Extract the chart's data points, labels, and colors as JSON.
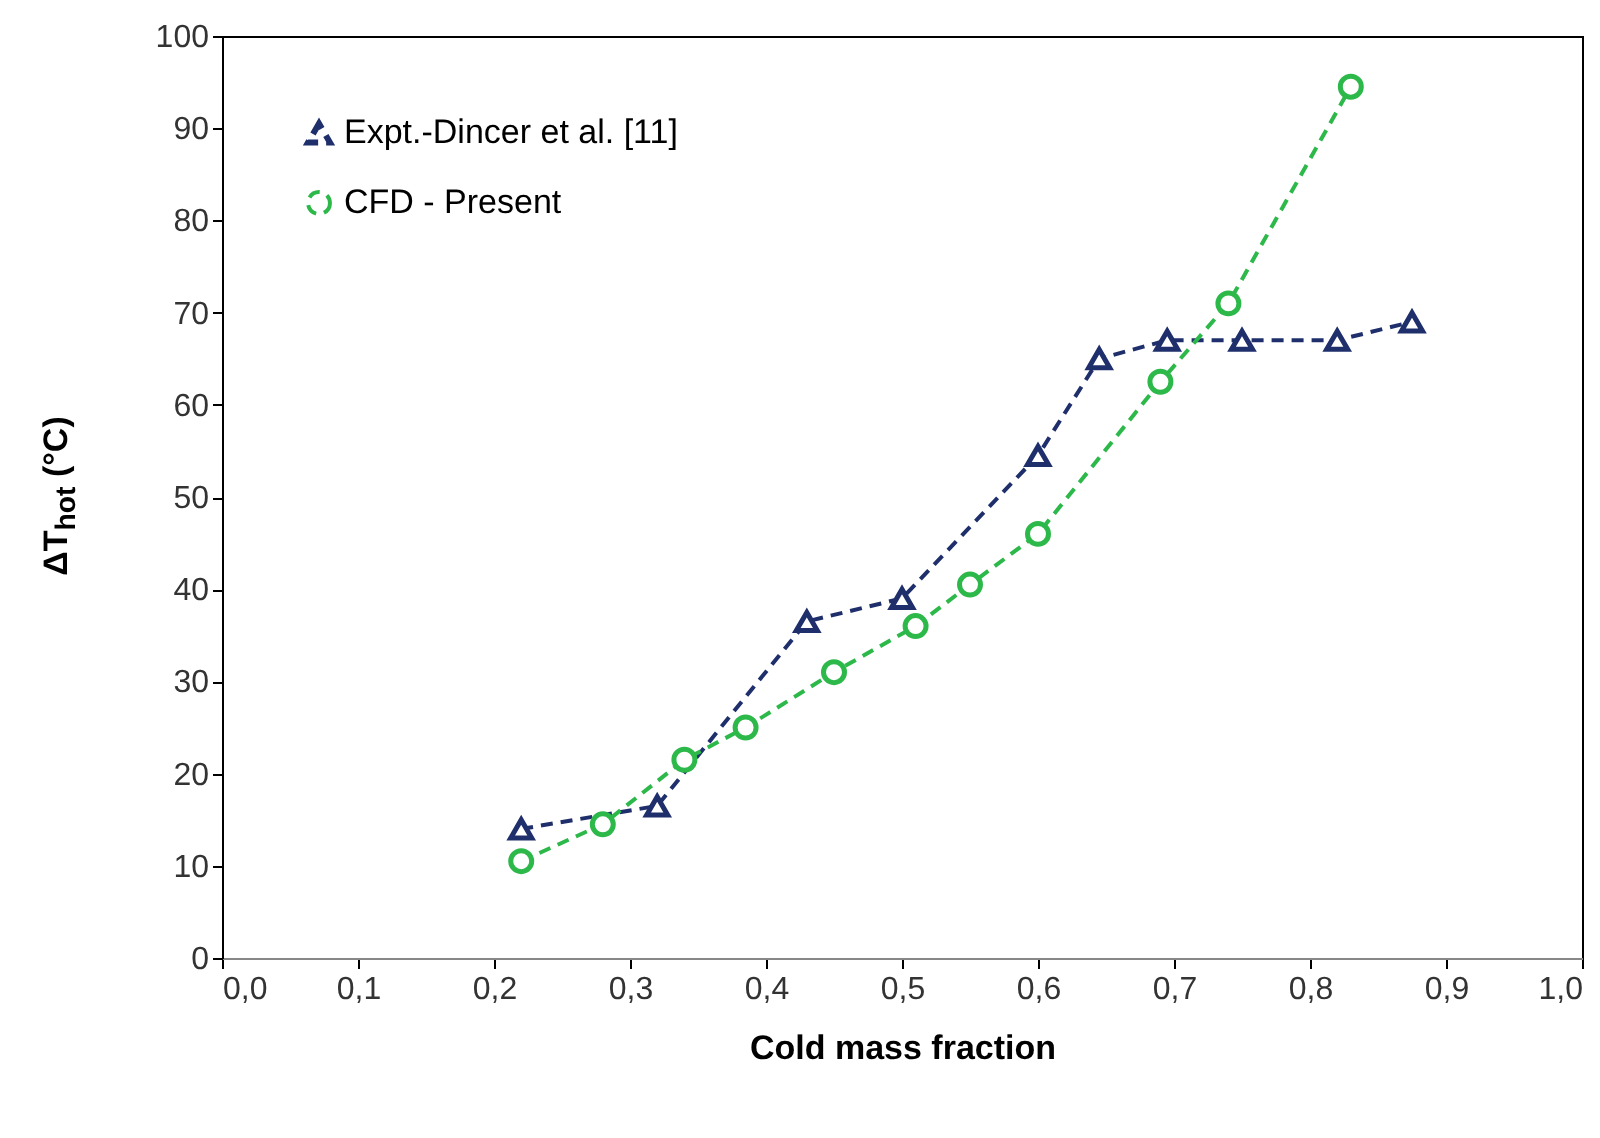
{
  "chart_data": {
    "type": "line",
    "xlabel": "Cold mass fraction",
    "ylabel": "ΔT$_{hot}$ (°C)",
    "xlim": [
      0,
      1
    ],
    "xticks": [
      {
        "value": 0,
        "label": "0,0"
      },
      {
        "value": 0.1,
        "label": "0,1"
      },
      {
        "value": 0.2,
        "label": "0,2"
      },
      {
        "value": 0.3,
        "label": "0,3"
      },
      {
        "value": 0.4,
        "label": "0,4"
      },
      {
        "value": 0.5,
        "label": "0,5"
      },
      {
        "value": 0.6,
        "label": "0,6"
      },
      {
        "value": 0.7,
        "label": "0,7"
      },
      {
        "value": 0.8,
        "label": "0,8"
      },
      {
        "value": 0.9,
        "label": "0,9"
      },
      {
        "value": 1,
        "label": "1,0"
      }
    ],
    "ylim": [
      0,
      100
    ],
    "yticks": [
      0,
      10,
      20,
      30,
      40,
      50,
      60,
      70,
      80,
      90,
      100
    ],
    "grid": false,
    "legend": "top left",
    "line_style": "dashed",
    "series": [
      {
        "name": "Expt.-Dincer et al. [11]",
        "color": "#1f2f6b",
        "marker": "triangle",
        "x": [
          0.22,
          0.32,
          0.43,
          0.5,
          0.6,
          0.645,
          0.695,
          0.75,
          0.82,
          0.875
        ],
        "values": [
          14,
          16.5,
          36.5,
          39,
          54.5,
          65,
          67,
          67,
          67,
          69
        ]
      },
      {
        "name": "CFD - Present",
        "color": "#2db84a",
        "marker": "circle",
        "x": [
          0.22,
          0.28,
          0.34,
          0.385,
          0.45,
          0.51,
          0.55,
          0.6,
          0.69,
          0.74,
          0.83
        ],
        "values": [
          10.5,
          14.5,
          21.5,
          25,
          31,
          36,
          40.5,
          46,
          62.5,
          71,
          94.5
        ]
      }
    ]
  }
}
